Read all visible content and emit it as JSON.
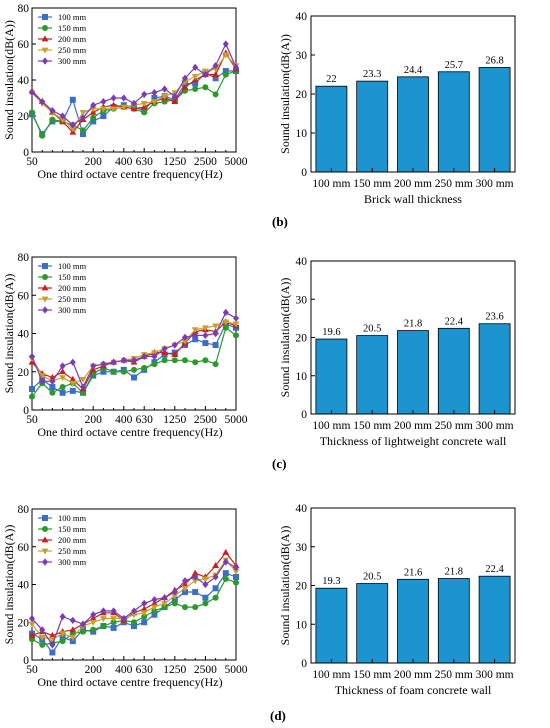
{
  "panel_labels": [
    "(b)",
    "(c)",
    "(d)"
  ],
  "chart_data": [
    {
      "type": "line",
      "x": [
        "50",
        "63",
        "80",
        "100",
        "125",
        "160",
        "200",
        "250",
        "315",
        "400",
        "500",
        "630",
        "800",
        "1000",
        "1250",
        "1600",
        "2000",
        "2500",
        "3150",
        "4000",
        "5000"
      ],
      "xticks": [
        "50",
        "200",
        "400",
        "630",
        "1250",
        "2500",
        "5000"
      ],
      "xlabel": "One third octave centre frequency(Hz)",
      "ylabel": "Sound insulation(dB(A))",
      "ylim": [
        0,
        80
      ],
      "yticks": [
        0,
        20,
        40,
        60,
        80
      ],
      "legend": "top-left",
      "series": [
        {
          "name": "100 mm",
          "color": "#3a6fc7",
          "marker": "square",
          "values": [
            21,
            10,
            17,
            17,
            29,
            10,
            17,
            20,
            25,
            26,
            25,
            23,
            30,
            31,
            29,
            38,
            38,
            44,
            41,
            45,
            45
          ]
        },
        {
          "name": "150 mm",
          "color": "#2a9a2a",
          "marker": "circle",
          "values": [
            22,
            9,
            18,
            17,
            15,
            12,
            19,
            23,
            24,
            25,
            24,
            22,
            27,
            28,
            29,
            34,
            35,
            36,
            32,
            43,
            45
          ]
        },
        {
          "name": "200 mm",
          "color": "#c8201e",
          "marker": "triangle-up",
          "values": [
            34,
            28,
            22,
            17,
            11,
            18,
            22,
            25,
            26,
            25,
            24,
            25,
            28,
            30,
            28,
            36,
            40,
            43,
            43,
            55,
            46
          ]
        },
        {
          "name": "250 mm",
          "color": "#c9a12a",
          "marker": "triangle-down",
          "values": [
            33,
            27,
            22,
            18,
            13,
            22,
            24,
            24,
            24,
            25,
            26,
            27,
            28,
            31,
            33,
            39,
            42,
            45,
            46,
            54,
            48
          ]
        },
        {
          "name": "300 mm",
          "color": "#7a3cb5",
          "marker": "diamond",
          "values": [
            33,
            28,
            23,
            20,
            15,
            19,
            26,
            28,
            30,
            30,
            27,
            32,
            33,
            35,
            31,
            41,
            47,
            43,
            48,
            60,
            47
          ]
        }
      ]
    },
    {
      "type": "bar",
      "categories": [
        "100 mm",
        "150 mm",
        "200 mm",
        "250 mm",
        "300 mm"
      ],
      "values": [
        22,
        23.3,
        24.4,
        25.7,
        26.8
      ],
      "labels": [
        "22",
        "23.3",
        "24.4",
        "25.7",
        "26.8"
      ],
      "xlabel": "Brick wall thickness",
      "ylabel": "Sound insulation(dB(A))",
      "ylim": [
        0,
        40
      ],
      "yticks": [
        0,
        10,
        20,
        30,
        40
      ],
      "color": "#1c94cf"
    },
    {
      "type": "line",
      "x": [
        "50",
        "63",
        "80",
        "100",
        "125",
        "160",
        "200",
        "250",
        "315",
        "400",
        "500",
        "630",
        "800",
        "1000",
        "1250",
        "1600",
        "2000",
        "2500",
        "3150",
        "4000",
        "5000"
      ],
      "xticks": [
        "50",
        "200",
        "400",
        "630",
        "1250",
        "2500",
        "5000"
      ],
      "xlabel": "One third octave centre frequency(Hz)",
      "ylabel": "Sound insulation(dB(A))",
      "ylim": [
        0,
        80
      ],
      "yticks": [
        0,
        20,
        40,
        60,
        80
      ],
      "legend": "top-left",
      "series": [
        {
          "name": "100 mm",
          "color": "#3a6fc7",
          "marker": "square",
          "values": [
            11,
            16,
            12,
            9,
            10,
            9,
            18,
            20,
            20,
            21,
            17,
            21,
            25,
            29,
            30,
            34,
            37,
            35,
            34,
            45,
            43
          ]
        },
        {
          "name": "150 mm",
          "color": "#2a9a2a",
          "marker": "circle",
          "values": [
            7,
            14,
            9,
            12,
            14,
            9,
            19,
            22,
            20,
            20,
            21,
            22,
            24,
            26,
            26,
            26,
            25,
            26,
            24,
            43,
            39
          ]
        },
        {
          "name": "200 mm",
          "color": "#c8201e",
          "marker": "triangle-up",
          "values": [
            25,
            19,
            17,
            20,
            16,
            11,
            21,
            23,
            25,
            26,
            25,
            28,
            30,
            30,
            29,
            35,
            41,
            42,
            41,
            46,
            44
          ]
        },
        {
          "name": "250 mm",
          "color": "#c9a12a",
          "marker": "triangle-down",
          "values": [
            27,
            18,
            15,
            17,
            14,
            16,
            23,
            24,
            25,
            26,
            27,
            29,
            30,
            32,
            34,
            36,
            42,
            43,
            44,
            46,
            45
          ]
        },
        {
          "name": "300 mm",
          "color": "#7a3cb5",
          "marker": "diamond",
          "values": [
            28,
            15,
            15,
            23,
            25,
            12,
            23,
            24,
            25,
            26,
            26,
            28,
            28,
            32,
            34,
            38,
            39,
            39,
            40,
            51,
            48
          ]
        }
      ]
    },
    {
      "type": "bar",
      "categories": [
        "100 mm",
        "150 mm",
        "200 mm",
        "250 mm",
        "300 mm"
      ],
      "values": [
        19.6,
        20.5,
        21.8,
        22.4,
        23.6
      ],
      "labels": [
        "19.6",
        "20.5",
        "21.8",
        "22.4",
        "23.6"
      ],
      "xlabel": "Thickness of lightweight concrete wall",
      "ylabel": "Sound insulation(dB(A))",
      "ylim": [
        0,
        40
      ],
      "yticks": [
        0,
        10,
        20,
        30,
        40
      ],
      "color": "#1c94cf"
    },
    {
      "type": "line",
      "x": [
        "50",
        "63",
        "80",
        "100",
        "125",
        "160",
        "200",
        "250",
        "315",
        "400",
        "500",
        "630",
        "800",
        "1000",
        "1250",
        "1600",
        "2000",
        "2500",
        "3150",
        "4000",
        "5000"
      ],
      "xticks": [
        "50",
        "200",
        "400",
        "630",
        "1250",
        "2500",
        "5000"
      ],
      "xlabel": "One third octave centre frequency(Hz)",
      "ylabel": "Sound insulation(dB(A))",
      "ylim": [
        0,
        80
      ],
      "yticks": [
        0,
        20,
        40,
        60,
        80
      ],
      "legend": "top-left",
      "series": [
        {
          "name": "100 mm",
          "color": "#3a6fc7",
          "marker": "square",
          "values": [
            14,
            11,
            4,
            12,
            10,
            16,
            15,
            18,
            17,
            20,
            18,
            20,
            24,
            28,
            32,
            36,
            36,
            33,
            38,
            46,
            44
          ]
        },
        {
          "name": "150 mm",
          "color": "#2a9a2a",
          "marker": "circle",
          "values": [
            11,
            8,
            9,
            10,
            14,
            15,
            16,
            18,
            20,
            21,
            20,
            23,
            26,
            28,
            30,
            28,
            28,
            30,
            33,
            43,
            41
          ]
        },
        {
          "name": "200 mm",
          "color": "#c8201e",
          "marker": "triangle-up",
          "values": [
            13,
            15,
            13,
            15,
            16,
            19,
            22,
            25,
            25,
            21,
            25,
            27,
            30,
            33,
            37,
            40,
            46,
            44,
            50,
            57,
            50
          ]
        },
        {
          "name": "250 mm",
          "color": "#c9a12a",
          "marker": "triangle-down",
          "values": [
            19,
            12,
            11,
            14,
            12,
            18,
            20,
            22,
            22,
            22,
            24,
            25,
            28,
            30,
            34,
            38,
            42,
            43,
            45,
            53,
            47
          ]
        },
        {
          "name": "300 mm",
          "color": "#7a3cb5",
          "marker": "diamond",
          "values": [
            22,
            16,
            8,
            23,
            21,
            19,
            24,
            26,
            26,
            22,
            26,
            30,
            32,
            33,
            36,
            42,
            44,
            40,
            44,
            52,
            49
          ]
        }
      ]
    },
    {
      "type": "bar",
      "categories": [
        "100 mm",
        "150 mm",
        "200 mm",
        "250 mm",
        "300 mm"
      ],
      "values": [
        19.3,
        20.5,
        21.6,
        21.8,
        22.4
      ],
      "labels": [
        "19.3",
        "20.5",
        "21.6",
        "21.8",
        "22.4"
      ],
      "xlabel": "Thickness of foam concrete wall",
      "ylabel": "Sound insulation(dB(A))",
      "ylim": [
        0,
        40
      ],
      "yticks": [
        0,
        10,
        20,
        30,
        40
      ],
      "color": "#1c94cf"
    }
  ]
}
